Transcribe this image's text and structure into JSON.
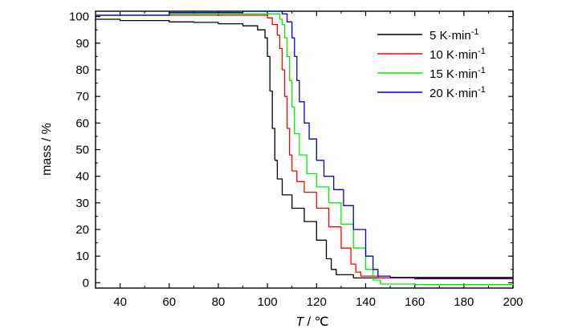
{
  "chart_data": {
    "type": "line",
    "xlabel_symbol": "T",
    "xlabel_unit": " / ℃",
    "ylabel": "mass / %",
    "xlim": [
      30,
      200
    ],
    "ylim": [
      -2,
      102
    ],
    "xticks": [
      40,
      60,
      80,
      100,
      120,
      140,
      160,
      180,
      200
    ],
    "yticks": [
      0,
      10,
      20,
      30,
      40,
      50,
      60,
      70,
      80,
      90,
      100
    ],
    "legend_position": "top-right",
    "series": [
      {
        "name_value": "5",
        "name_unit": "K·min",
        "name_sup": "-1",
        "color": "#000000",
        "points": [
          [
            30,
            99
          ],
          [
            40,
            98.5
          ],
          [
            50,
            98.5
          ],
          [
            60,
            98
          ],
          [
            70,
            97.8
          ],
          [
            80,
            97.3
          ],
          [
            90,
            96.5
          ],
          [
            96,
            95
          ],
          [
            99,
            92
          ],
          [
            100,
            85
          ],
          [
            101,
            72
          ],
          [
            102,
            58
          ],
          [
            103,
            46
          ],
          [
            104,
            39
          ],
          [
            106,
            33
          ],
          [
            110,
            28
          ],
          [
            115,
            23
          ],
          [
            120,
            16
          ],
          [
            124,
            9
          ],
          [
            126,
            5
          ],
          [
            128,
            3
          ],
          [
            135,
            1.8
          ],
          [
            160,
            1.5
          ],
          [
            200,
            1.5
          ]
        ]
      },
      {
        "name_value": "10",
        "name_unit": "K·min",
        "name_sup": "-1",
        "color": "#ff0000",
        "points": [
          [
            30,
            100.5
          ],
          [
            60,
            100.5
          ],
          [
            90,
            100.5
          ],
          [
            100,
            99.5
          ],
          [
            102,
            97
          ],
          [
            104,
            93
          ],
          [
            105,
            88
          ],
          [
            106,
            80
          ],
          [
            107,
            70
          ],
          [
            108,
            58
          ],
          [
            109,
            48
          ],
          [
            110,
            42
          ],
          [
            112,
            38
          ],
          [
            115,
            34
          ],
          [
            120,
            28
          ],
          [
            125,
            21
          ],
          [
            130,
            13
          ],
          [
            134,
            7
          ],
          [
            136,
            4
          ],
          [
            138,
            2.5
          ],
          [
            145,
            1.8
          ],
          [
            200,
            2
          ]
        ]
      },
      {
        "name_value": "15",
        "name_unit": "K·min",
        "name_sup": "-1",
        "color": "#00ee00",
        "points": [
          [
            30,
            100.5
          ],
          [
            60,
            101
          ],
          [
            95,
            101
          ],
          [
            103,
            101
          ],
          [
            105,
            99
          ],
          [
            106,
            97
          ],
          [
            107,
            92
          ],
          [
            108,
            85
          ],
          [
            109,
            76
          ],
          [
            110,
            66
          ],
          [
            111,
            56
          ],
          [
            113,
            48
          ],
          [
            116,
            41
          ],
          [
            120,
            36
          ],
          [
            125,
            30
          ],
          [
            130,
            22
          ],
          [
            135,
            13
          ],
          [
            140,
            5
          ],
          [
            143,
            1
          ],
          [
            146,
            -0.5
          ],
          [
            160,
            -0.7
          ],
          [
            200,
            -0.5
          ]
        ]
      },
      {
        "name_value": "20",
        "name_unit": "K·min",
        "name_sup": "-1",
        "color": "#0000cc",
        "points": [
          [
            30,
            100.5
          ],
          [
            60,
            101.5
          ],
          [
            90,
            102
          ],
          [
            104,
            102
          ],
          [
            106,
            101
          ],
          [
            108,
            98
          ],
          [
            110,
            92
          ],
          [
            111,
            85
          ],
          [
            112,
            76
          ],
          [
            113,
            68
          ],
          [
            115,
            60
          ],
          [
            117,
            54
          ],
          [
            120,
            46
          ],
          [
            123,
            40
          ],
          [
            127,
            35
          ],
          [
            131,
            29
          ],
          [
            135,
            20
          ],
          [
            140,
            10
          ],
          [
            143,
            5
          ],
          [
            145,
            2.5
          ],
          [
            150,
            2
          ],
          [
            200,
            2.5
          ]
        ]
      }
    ]
  }
}
